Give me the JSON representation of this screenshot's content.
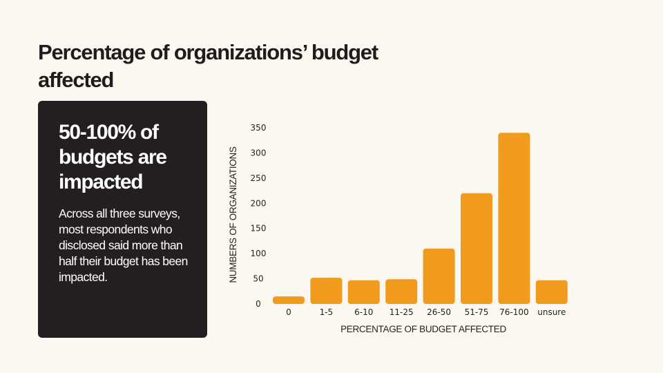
{
  "page": {
    "title": "Percentage of organizations’ budget affected"
  },
  "card": {
    "heading": "50-100% of budgets are impacted",
    "body": "Across all three surveys, most respondents who disclosed said more than half their budget has been impacted."
  },
  "colors": {
    "background": "#fbf8f1",
    "card": "#231f20",
    "bar": "#f09a1e",
    "text": "#231f20"
  },
  "chart_data": {
    "type": "bar",
    "title": "",
    "categories": [
      "0",
      "1-5",
      "6-10",
      "11-25",
      "26-50",
      "51-75",
      "76-100",
      "unsure"
    ],
    "values": [
      15,
      52,
      47,
      49,
      110,
      220,
      340,
      47
    ],
    "xlabel": "PERCENTAGE OF BUDGET AFFECTED",
    "ylabel": "NUMBERS OF ORGANIZATIONS",
    "ylim": [
      0,
      350
    ],
    "yticks": [
      0,
      50,
      100,
      150,
      200,
      250,
      300,
      350
    ],
    "grid": false,
    "legend": "none"
  }
}
